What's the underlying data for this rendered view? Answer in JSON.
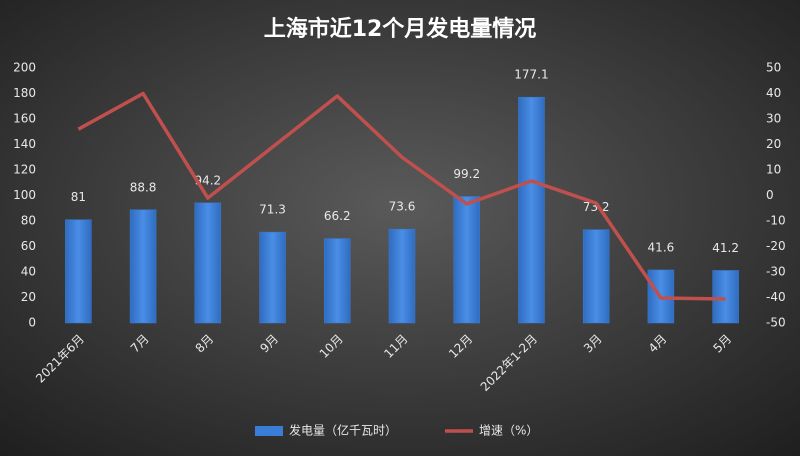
{
  "chart_data": {
    "type": "combo",
    "title": "上海市近12个月发电量情况",
    "categories": [
      "2021年6月",
      "7月",
      "8月",
      "9月",
      "10月",
      "11月",
      "12月",
      "2022年1-2月",
      "3月",
      "4月",
      "5月"
    ],
    "series": [
      {
        "name": "发电量（亿千瓦时）",
        "type": "bar",
        "color": "#3a7dd6",
        "axis": "y",
        "values": [
          81,
          88.8,
          94.2,
          71.3,
          66.2,
          73.6,
          99.2,
          177.1,
          73.2,
          41.6,
          41.2
        ]
      },
      {
        "name": "增速（%）",
        "type": "line",
        "color": "#c0504d",
        "axis": "y2",
        "values": [
          26,
          40,
          -1,
          19,
          39,
          15,
          -3.3,
          5.7,
          -3,
          -40.2,
          -40.6
        ]
      }
    ],
    "ylim": [
      0,
      200
    ],
    "yticks": [
      0,
      20,
      40,
      60,
      80,
      100,
      120,
      140,
      160,
      180,
      200
    ],
    "y2lim": [
      -50,
      50
    ],
    "y2ticks": [
      -50,
      -40,
      -30,
      -20,
      -10,
      0,
      10,
      20,
      30,
      40,
      50
    ],
    "legend": "bottom"
  }
}
